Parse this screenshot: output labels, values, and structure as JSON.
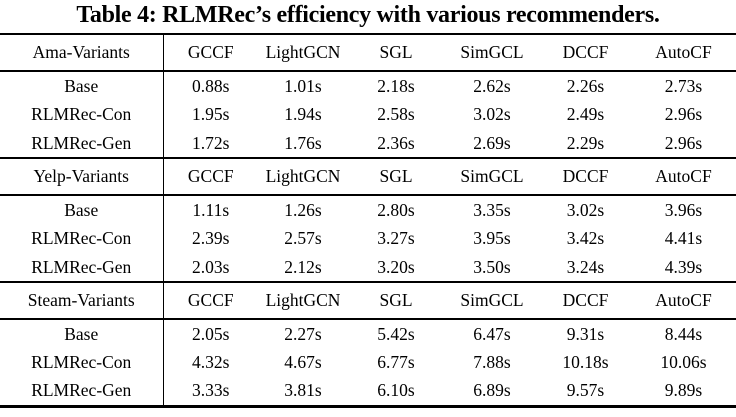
{
  "title": "Table 4: RLMRec’s efficiency with various recommenders.",
  "columns": [
    "GCCF",
    "LightGCN",
    "SGL",
    "SimGCL",
    "DCCF",
    "AutoCF"
  ],
  "sections": [
    {
      "label": "Ama-Variants",
      "rows": [
        {
          "label": "Base",
          "values": [
            "0.88s",
            "1.01s",
            "2.18s",
            "2.62s",
            "2.26s",
            "2.73s"
          ]
        },
        {
          "label": "RLMRec-Con",
          "values": [
            "1.95s",
            "1.94s",
            "2.58s",
            "3.02s",
            "2.49s",
            "2.96s"
          ]
        },
        {
          "label": "RLMRec-Gen",
          "values": [
            "1.72s",
            "1.76s",
            "2.36s",
            "2.69s",
            "2.29s",
            "2.96s"
          ]
        }
      ]
    },
    {
      "label": "Yelp-Variants",
      "rows": [
        {
          "label": "Base",
          "values": [
            "1.11s",
            "1.26s",
            "2.80s",
            "3.35s",
            "3.02s",
            "3.96s"
          ]
        },
        {
          "label": "RLMRec-Con",
          "values": [
            "2.39s",
            "2.57s",
            "3.27s",
            "3.95s",
            "3.42s",
            "4.41s"
          ]
        },
        {
          "label": "RLMRec-Gen",
          "values": [
            "2.03s",
            "2.12s",
            "3.20s",
            "3.50s",
            "3.24s",
            "4.39s"
          ]
        }
      ]
    },
    {
      "label": "Steam-Variants",
      "rows": [
        {
          "label": "Base",
          "values": [
            "2.05s",
            "2.27s",
            "5.42s",
            "6.47s",
            "9.31s",
            "8.44s"
          ]
        },
        {
          "label": "RLMRec-Con",
          "values": [
            "4.32s",
            "4.67s",
            "6.77s",
            "7.88s",
            "10.18s",
            "10.06s"
          ]
        },
        {
          "label": "RLMRec-Gen",
          "values": [
            "3.33s",
            "3.81s",
            "6.10s",
            "6.89s",
            "9.57s",
            "9.89s"
          ]
        }
      ]
    }
  ]
}
